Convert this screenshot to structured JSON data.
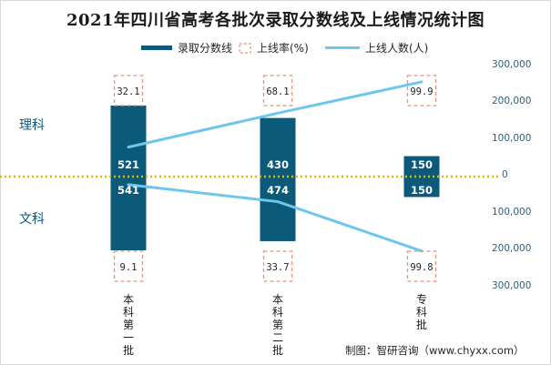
{
  "chart_data": {
    "type": "bar",
    "title": "2021年四川省高考各批次录取分数线及上线情况统计图",
    "categories": [
      "本科第一批",
      "本科第二批",
      "专科批"
    ],
    "side_labels": {
      "top": "理科",
      "bottom": "文科"
    },
    "legend": [
      "录取分数线",
      "上线率(%)",
      "上线人数(人)"
    ],
    "series": [
      {
        "name": "理科录取分数线",
        "values": [
          521,
          430,
          150
        ]
      },
      {
        "name": "文科录取分数线",
        "values": [
          541,
          474,
          150
        ]
      },
      {
        "name": "理科上线率(%)",
        "values": [
          32.1,
          68.1,
          99.9
        ]
      },
      {
        "name": "文科上线率(%)",
        "values": [
          9.1,
          33.7,
          99.8
        ]
      },
      {
        "name": "理科上线人数(人)",
        "values": [
          80000,
          172000,
          257000
        ]
      },
      {
        "name": "文科上线人数(人)",
        "values": [
          22000,
          68000,
          202000
        ]
      }
    ],
    "score_labels": {
      "science": [
        "521",
        "430",
        "150"
      ],
      "arts": [
        "541",
        "474",
        "150"
      ]
    },
    "rate_labels": {
      "science": [
        "32.1",
        "68.1",
        "99.9"
      ],
      "arts": [
        "9.1",
        "33.7",
        "99.8"
      ]
    },
    "y_ticks": [
      "300,000",
      "200,000",
      "100,000",
      "0",
      "100,000",
      "200,000",
      "300,000"
    ],
    "y_tick_values": [
      300000,
      200000,
      100000,
      0,
      -100000,
      -200000,
      -300000
    ],
    "ylim": [
      -300000,
      300000
    ],
    "colors": {
      "bar": "#0b5a7a",
      "line": "#6ec6ec",
      "dash": "#e8907a",
      "zero": "#e5b800"
    }
  },
  "source": "制图：智研咨询（www.chyxx.com）"
}
